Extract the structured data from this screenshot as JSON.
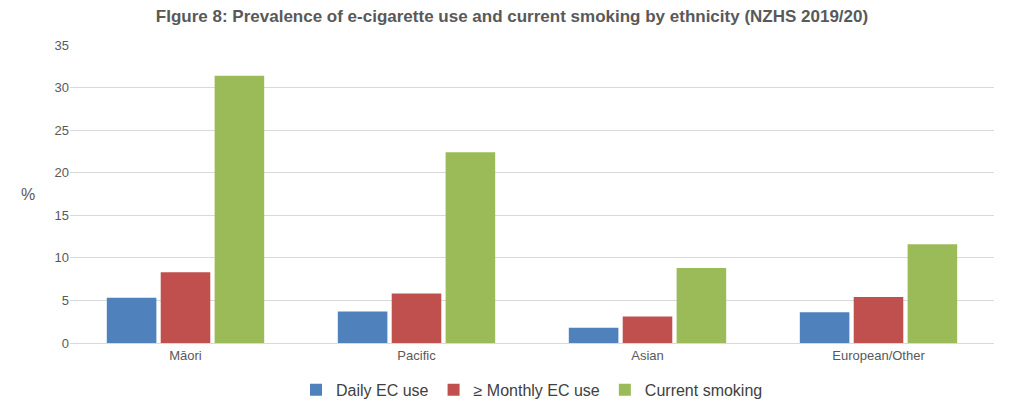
{
  "chart_data": {
    "type": "bar",
    "title": "FIgure 8: Prevalence of e-cigarette use and current smoking by ethnicity (NZHS 2019/20)",
    "y_label": "%",
    "categories": [
      "Māori",
      "Pacific",
      "Asian",
      "European/Other"
    ],
    "series": [
      {
        "name": "Daily EC use",
        "color": "#4F81BD",
        "values": [
          5.3,
          3.7,
          1.8,
          3.6
        ]
      },
      {
        "name": "≥ Monthly EC use",
        "color": "#C0504D",
        "values": [
          8.3,
          5.8,
          3.1,
          5.4
        ]
      },
      {
        "name": "Current smoking",
        "color": "#9BBB59",
        "values": [
          31.4,
          22.4,
          8.8,
          11.6
        ]
      }
    ],
    "ylim": [
      0,
      35
    ],
    "yticks": [
      0,
      5,
      10,
      15,
      20,
      25,
      30,
      35
    ],
    "grid": true,
    "legend": "bottom"
  }
}
